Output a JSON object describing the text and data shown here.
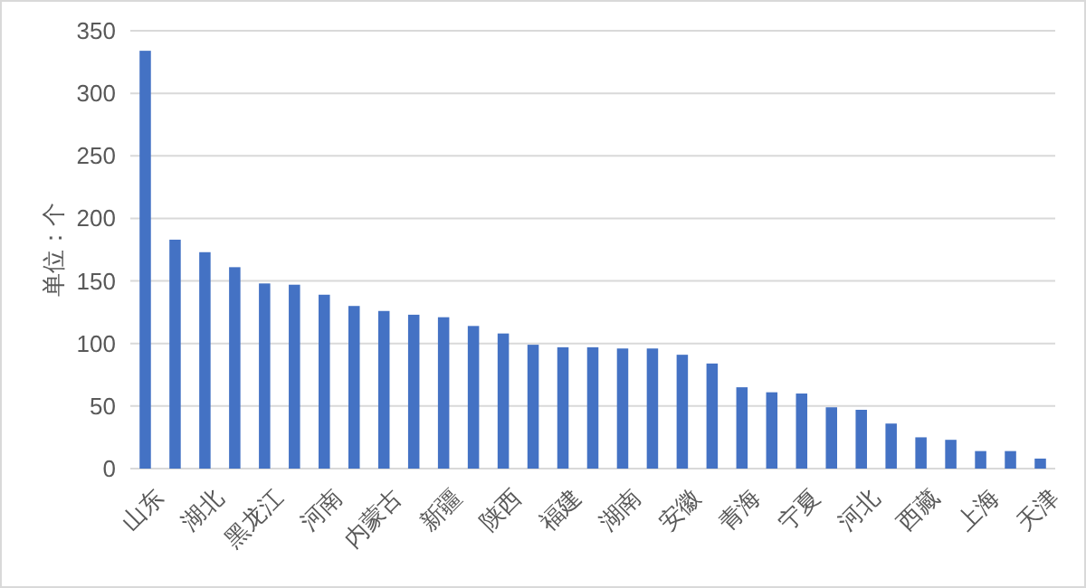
{
  "chart_data": {
    "type": "bar",
    "ylabel": "单位：个",
    "categories": [
      "山东",
      null,
      "湖北",
      null,
      "黑龙江",
      null,
      "河南",
      null,
      "内蒙古",
      null,
      "新疆",
      null,
      "陕西",
      null,
      "福建",
      null,
      "湖南",
      null,
      "安徽",
      null,
      "青海",
      null,
      "宁夏",
      null,
      "河北",
      null,
      "西藏",
      null,
      "上海",
      null,
      "天津"
    ],
    "values": [
      334,
      183,
      173,
      161,
      148,
      147,
      139,
      130,
      126,
      123,
      121,
      114,
      108,
      99,
      97,
      97,
      96,
      96,
      91,
      84,
      65,
      61,
      60,
      49,
      47,
      36,
      25,
      23,
      14,
      14,
      8
    ],
    "color": "#4472c4",
    "ylim": [
      0,
      350
    ],
    "yticks": [
      0,
      50,
      100,
      150,
      200,
      250,
      300,
      350
    ],
    "grid": "y"
  }
}
